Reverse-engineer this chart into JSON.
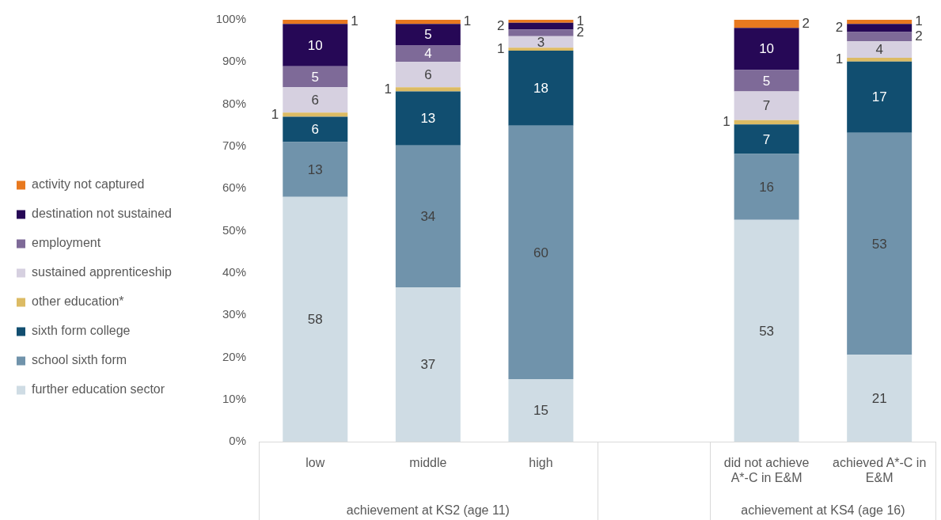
{
  "chart_data": {
    "type": "bar",
    "stacked": true,
    "categories": [
      "low",
      "middle",
      "high",
      null,
      "did not achieve A*-C in E&M",
      "achieved A*-C in E&M"
    ],
    "series": [
      {
        "name": "further education sector",
        "color": "#cfdce4",
        "values": [
          58,
          36.6,
          14.8,
          null,
          52.6,
          20.6
        ],
        "value_labels": [
          "58",
          "37",
          "15",
          null,
          "53",
          "21"
        ]
      },
      {
        "name": "school sixth form",
        "color": "#7093ab",
        "values": [
          13,
          33.6,
          60.1,
          null,
          15.6,
          52.6
        ],
        "value_labels": [
          "13",
          "34",
          "60",
          null,
          "16",
          "53"
        ]
      },
      {
        "name": "sixth form college",
        "color": "#114e70",
        "values": [
          6,
          12.8,
          17.8,
          null,
          7.0,
          16.9
        ],
        "value_labels": [
          "6",
          "13",
          "18",
          null,
          "7",
          "17"
        ]
      },
      {
        "name": "other education*",
        "color": "#dcbb64",
        "values": [
          1,
          1.0,
          0.7,
          null,
          1.0,
          0.9
        ],
        "value_labels": [
          "1",
          "1",
          "1",
          null,
          "1",
          "1"
        ]
      },
      {
        "name": "sustained apprenticeship",
        "color": "#d6d0e0",
        "values": [
          6,
          6.0,
          2.7,
          null,
          6.8,
          3.9
        ],
        "value_labels": [
          "6",
          "6",
          "3",
          null,
          "7",
          "4"
        ]
      },
      {
        "name": "employment",
        "color": "#7e6a98",
        "values": [
          5,
          4.0,
          1.6,
          null,
          5.1,
          2.2
        ],
        "value_labels": [
          "5",
          "4",
          "2",
          null,
          "5",
          "2"
        ]
      },
      {
        "name": "destination not sustained",
        "color": "#260856",
        "values": [
          10,
          5.0,
          1.6,
          null,
          10.0,
          1.9
        ],
        "value_labels": [
          "10",
          "5",
          "2",
          null,
          "10",
          "2"
        ]
      },
      {
        "name": "activity not captured",
        "color": "#e8791f",
        "values": [
          1,
          1.0,
          0.7,
          null,
          1.9,
          1.0
        ],
        "value_labels": [
          "1",
          "1",
          "1",
          null,
          "2",
          "1"
        ]
      }
    ],
    "ylim": [
      0,
      100
    ],
    "yticks": [
      {
        "value": 0,
        "label": "0%"
      },
      {
        "value": 10,
        "label": "10%"
      },
      {
        "value": 20,
        "label": "20%"
      },
      {
        "value": 30,
        "label": "30%"
      },
      {
        "value": 40,
        "label": "40%"
      },
      {
        "value": 50,
        "label": "50%"
      },
      {
        "value": 60,
        "label": "60%"
      },
      {
        "value": 70,
        "label": "70%"
      },
      {
        "value": 80,
        "label": "80%"
      },
      {
        "value": 90,
        "label": "90%"
      },
      {
        "value": 100,
        "label": "100%"
      }
    ],
    "legend": "left",
    "annotations": [
      "achievement at KS2 (age 11)",
      "achievement at KS4 (age 16)"
    ]
  }
}
